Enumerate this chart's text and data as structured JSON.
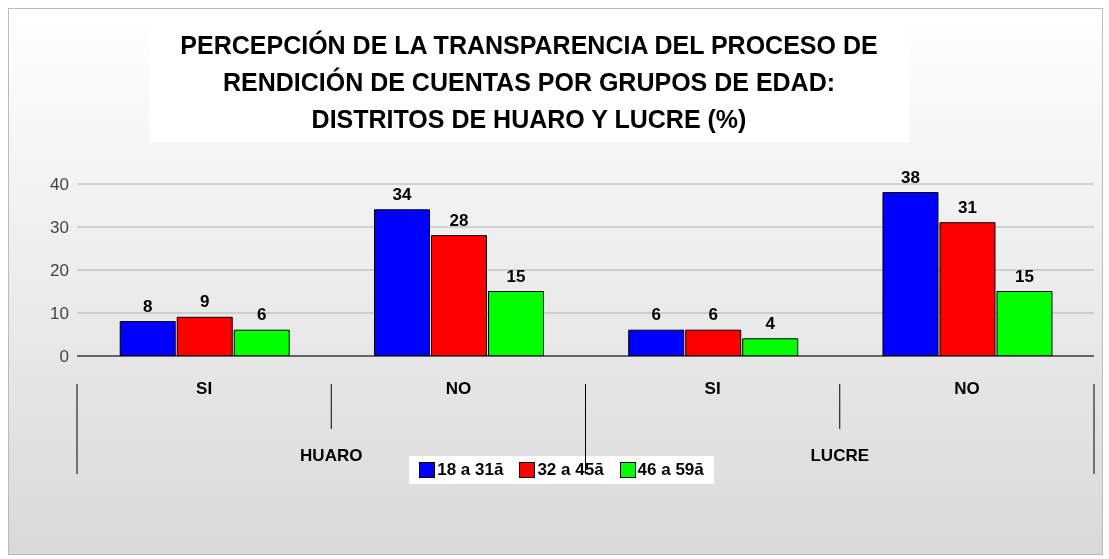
{
  "chart_data": {
    "type": "bar",
    "title": "PERCEPCIÓN DE LA TRANSPARENCIA DEL PROCESO DE RENDICIÓN DE CUENTAS POR GRUPOS DE EDAD: DISTRITOS DE HUARO Y LUCRE (%)",
    "categories": [
      "SI",
      "NO",
      "SI",
      "NO"
    ],
    "series": [
      {
        "name": "18 a 31ā",
        "color": "#0000ff",
        "values": [
          8,
          34,
          6,
          38
        ]
      },
      {
        "name": "32 a 45ā",
        "color": "#ff0000",
        "values": [
          9,
          28,
          6,
          31
        ]
      },
      {
        "name": "46 a 59ā",
        "color": "#00ff00",
        "values": [
          6,
          15,
          4,
          15
        ]
      }
    ],
    "annotations": [
      "HUARO",
      "LUCRE"
    ],
    "ylim": [
      0,
      40
    ],
    "yticks": [
      0,
      10,
      20,
      30,
      40
    ],
    "grid": "y",
    "legend": "bottom",
    "data_labels": true
  }
}
